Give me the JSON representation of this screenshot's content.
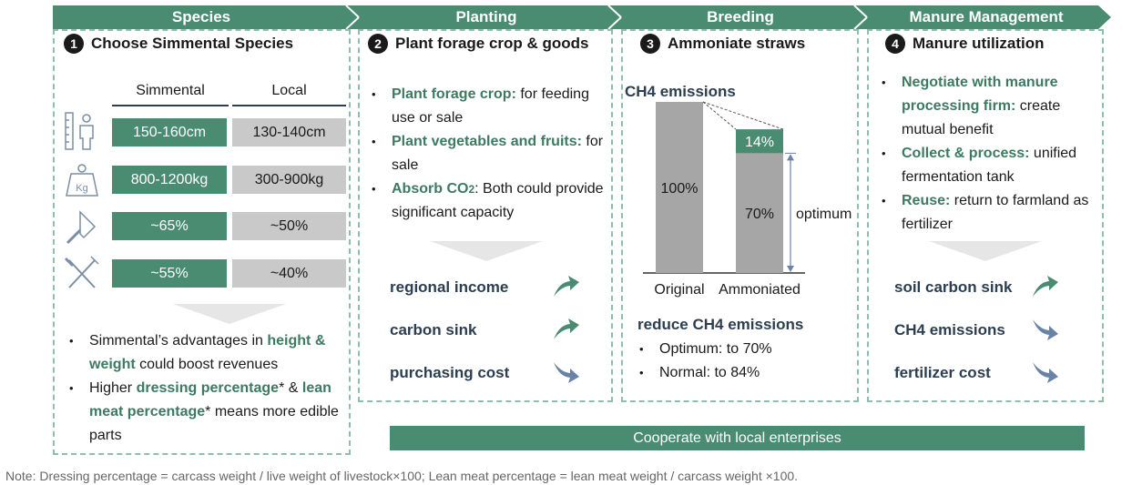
{
  "headers": {
    "species": "Species",
    "planting": "Planting",
    "breeding": "Breeding",
    "manure": "Manure Management"
  },
  "species": {
    "num": "1",
    "title": "Choose Simmental Species",
    "col_simmental": "Simmental",
    "col_local": "Local",
    "rows": [
      {
        "icon": "height-ruler-icon",
        "simmental": "150-160cm",
        "local": "130-140cm"
      },
      {
        "icon": "weight-kg-icon",
        "simmental": "800-1200kg",
        "local": "300-900kg"
      },
      {
        "icon": "cleaver-icon",
        "simmental": "~65%",
        "local": "~50%"
      },
      {
        "icon": "fork-knife-icon",
        "simmental": "~55%",
        "local": "~40%"
      }
    ],
    "bullet1_a": "Simmental’s advantages in ",
    "bullet1_hl": "height & weight",
    "bullet1_b": " could boost revenues",
    "bullet2_a": "Higher ",
    "bullet2_hl1": "dressing percentage",
    "bullet2_b": "* & ",
    "bullet2_hl2": "lean meat percentage",
    "bullet2_c": "* means more edible parts"
  },
  "planting": {
    "num": "2",
    "title": "Plant forage crop & goods",
    "b1_hl": "Plant forage crop:",
    "b1": " for feeding use or sale",
    "b2_hl": "Plant vegetables and fruits:",
    "b2": " for sale",
    "b3_hl": "Absorb CO",
    "b3_sub": "2",
    "b3": ": Both could provide significant capacity",
    "outcomes": [
      {
        "label": "regional income",
        "dir": "up"
      },
      {
        "label": "carbon sink",
        "dir": "up"
      },
      {
        "label": "purchasing cost",
        "dir": "down"
      }
    ]
  },
  "breeding": {
    "num": "3",
    "title": "Ammoniate straws",
    "reduce_title": "reduce CH4 emissions",
    "reduce_b1": "Optimum: to 70%",
    "reduce_b2": "Normal: to 84%"
  },
  "manure": {
    "num": "4",
    "title": "Manure utilization",
    "b1_hl": "Negotiate with manure processing firm:",
    "b1": " create mutual benefit",
    "b2_hl": "Collect & process:",
    "b2": " unified fermentation tank",
    "b3_hl": "Reuse:",
    "b3": " return to farmland as fertilizer",
    "outcomes": [
      {
        "label": "soil carbon sink",
        "dir": "up"
      },
      {
        "label": "CH4 emissions",
        "dir": "down"
      },
      {
        "label": "fertilizer cost",
        "dir": "down"
      }
    ]
  },
  "cooperate": "Cooperate with local enterprises",
  "note": "Note: Dressing percentage = carcass weight / live weight of livestock×100;   Lean meat percentage = lean meat weight / carcass weight ×100.",
  "chart_data": {
    "type": "bar",
    "title": "CH4 emissions",
    "categories": [
      "Original",
      "Ammoniated"
    ],
    "series": [
      {
        "values": [
          100,
          70
        ],
        "labels": [
          "100%",
          "70%"
        ],
        "color": "#a6a6a6"
      },
      {
        "values": [
          0,
          14
        ],
        "labels": [
          "",
          "14%"
        ],
        "color": "#4a8c72"
      }
    ],
    "annotation": "optimum",
    "ylim": [
      0,
      100
    ]
  },
  "colors": {
    "accent": "#4a8c72",
    "up_arrow": "#4a8c72",
    "down_arrow": "#6a82a6",
    "grey_cell": "#c9c9c9"
  }
}
